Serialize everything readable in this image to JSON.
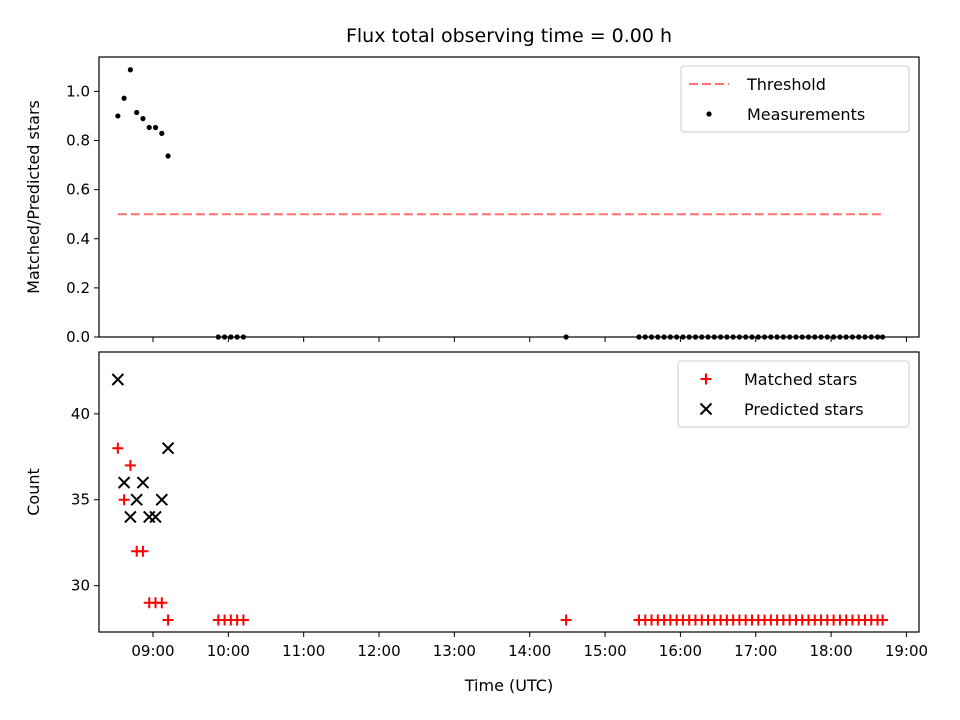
{
  "chart_data": {
    "type": "scatter",
    "title": "Flux total observing time = 0.00 h",
    "xlabel": "Time (UTC)",
    "x_ticks": [
      "09:00",
      "10:00",
      "11:00",
      "12:00",
      "13:00",
      "14:00",
      "15:00",
      "16:00",
      "17:00",
      "18:00",
      "19:00"
    ],
    "x_range": [
      "08:17",
      "19:10"
    ],
    "panels": [
      {
        "ylabel": "Matched/Predicted stars",
        "ylim": [
          0,
          1.14
        ],
        "y_ticks": [
          0.0,
          0.2,
          0.4,
          0.6,
          0.8,
          1.0
        ],
        "legend_position": "upper right",
        "series": [
          {
            "name": "Threshold",
            "type": "line",
            "style": "dashed",
            "color": "#ff7070",
            "points": [
              [
                "08:32",
                0.5
              ],
              [
                "18:40",
                0.5
              ]
            ]
          },
          {
            "name": "Measurements",
            "type": "scatter",
            "marker": "dot",
            "color": "#000000",
            "points": [
              [
                "08:32",
                0.9
              ],
              [
                "08:37",
                0.972
              ],
              [
                "08:42",
                1.088
              ],
              [
                "08:47",
                0.914
              ],
              [
                "08:52",
                0.889
              ],
              [
                "08:57",
                0.853
              ],
              [
                "09:02",
                0.853
              ],
              [
                "09:07",
                0.829
              ],
              [
                "09:12",
                0.737
              ],
              [
                "09:52",
                0
              ],
              [
                "09:57",
                0
              ],
              [
                "10:02",
                0
              ],
              [
                "10:07",
                0
              ],
              [
                "10:12",
                0
              ],
              [
                "14:29",
                0
              ],
              [
                "15:27",
                0
              ],
              [
                "15:32",
                0
              ],
              [
                "15:37",
                0
              ],
              [
                "15:42",
                0
              ],
              [
                "15:47",
                0
              ],
              [
                "15:52",
                0
              ],
              [
                "15:57",
                0
              ],
              [
                "16:02",
                0
              ],
              [
                "16:07",
                0
              ],
              [
                "16:12",
                0
              ],
              [
                "16:17",
                0
              ],
              [
                "16:22",
                0
              ],
              [
                "16:27",
                0
              ],
              [
                "16:32",
                0
              ],
              [
                "16:37",
                0
              ],
              [
                "16:42",
                0
              ],
              [
                "16:47",
                0
              ],
              [
                "16:52",
                0
              ],
              [
                "16:57",
                0
              ],
              [
                "17:02",
                0
              ],
              [
                "17:07",
                0
              ],
              [
                "17:12",
                0
              ],
              [
                "17:17",
                0
              ],
              [
                "17:22",
                0
              ],
              [
                "17:27",
                0
              ],
              [
                "17:32",
                0
              ],
              [
                "17:37",
                0
              ],
              [
                "17:42",
                0
              ],
              [
                "17:47",
                0
              ],
              [
                "17:52",
                0
              ],
              [
                "17:57",
                0
              ],
              [
                "18:02",
                0
              ],
              [
                "18:07",
                0
              ],
              [
                "18:12",
                0
              ],
              [
                "18:17",
                0
              ],
              [
                "18:22",
                0
              ],
              [
                "18:27",
                0
              ],
              [
                "18:32",
                0
              ],
              [
                "18:37",
                0
              ],
              [
                "18:41",
                0
              ]
            ]
          }
        ]
      },
      {
        "ylabel": "Count",
        "ylim": [
          27.3,
          43.6
        ],
        "y_ticks": [
          30,
          35,
          40
        ],
        "legend_position": "upper right",
        "series": [
          {
            "name": "Matched stars",
            "type": "scatter",
            "marker": "plus",
            "color": "#ff0000",
            "points": [
              [
                "08:32",
                38
              ],
              [
                "08:37",
                35
              ],
              [
                "08:42",
                37
              ],
              [
                "08:47",
                32
              ],
              [
                "08:52",
                32
              ],
              [
                "08:57",
                29
              ],
              [
                "09:02",
                29
              ],
              [
                "09:07",
                29
              ],
              [
                "09:12",
                28
              ],
              [
                "09:52",
                28
              ],
              [
                "09:57",
                28
              ],
              [
                "10:02",
                28
              ],
              [
                "10:07",
                28
              ],
              [
                "10:12",
                28
              ],
              [
                "14:29",
                28
              ],
              [
                "15:27",
                28
              ],
              [
                "15:32",
                28
              ],
              [
                "15:37",
                28
              ],
              [
                "15:42",
                28
              ],
              [
                "15:47",
                28
              ],
              [
                "15:52",
                28
              ],
              [
                "15:57",
                28
              ],
              [
                "16:02",
                28
              ],
              [
                "16:07",
                28
              ],
              [
                "16:12",
                28
              ],
              [
                "16:17",
                28
              ],
              [
                "16:22",
                28
              ],
              [
                "16:27",
                28
              ],
              [
                "16:32",
                28
              ],
              [
                "16:37",
                28
              ],
              [
                "16:42",
                28
              ],
              [
                "16:47",
                28
              ],
              [
                "16:52",
                28
              ],
              [
                "16:57",
                28
              ],
              [
                "17:02",
                28
              ],
              [
                "17:07",
                28
              ],
              [
                "17:12",
                28
              ],
              [
                "17:17",
                28
              ],
              [
                "17:22",
                28
              ],
              [
                "17:27",
                28
              ],
              [
                "17:32",
                28
              ],
              [
                "17:37",
                28
              ],
              [
                "17:42",
                28
              ],
              [
                "17:47",
                28
              ],
              [
                "17:52",
                28
              ],
              [
                "17:57",
                28
              ],
              [
                "18:02",
                28
              ],
              [
                "18:07",
                28
              ],
              [
                "18:12",
                28
              ],
              [
                "18:17",
                28
              ],
              [
                "18:22",
                28
              ],
              [
                "18:27",
                28
              ],
              [
                "18:32",
                28
              ],
              [
                "18:37",
                28
              ],
              [
                "18:41",
                28
              ]
            ]
          },
          {
            "name": "Predicted stars",
            "type": "scatter",
            "marker": "x",
            "color": "#000000",
            "points": [
              [
                "08:32",
                42
              ],
              [
                "08:37",
                36
              ],
              [
                "08:42",
                34
              ],
              [
                "08:47",
                35
              ],
              [
                "08:52",
                36
              ],
              [
                "08:57",
                34
              ],
              [
                "09:02",
                34
              ],
              [
                "09:07",
                35
              ],
              [
                "09:12",
                38
              ]
            ]
          }
        ]
      }
    ]
  }
}
